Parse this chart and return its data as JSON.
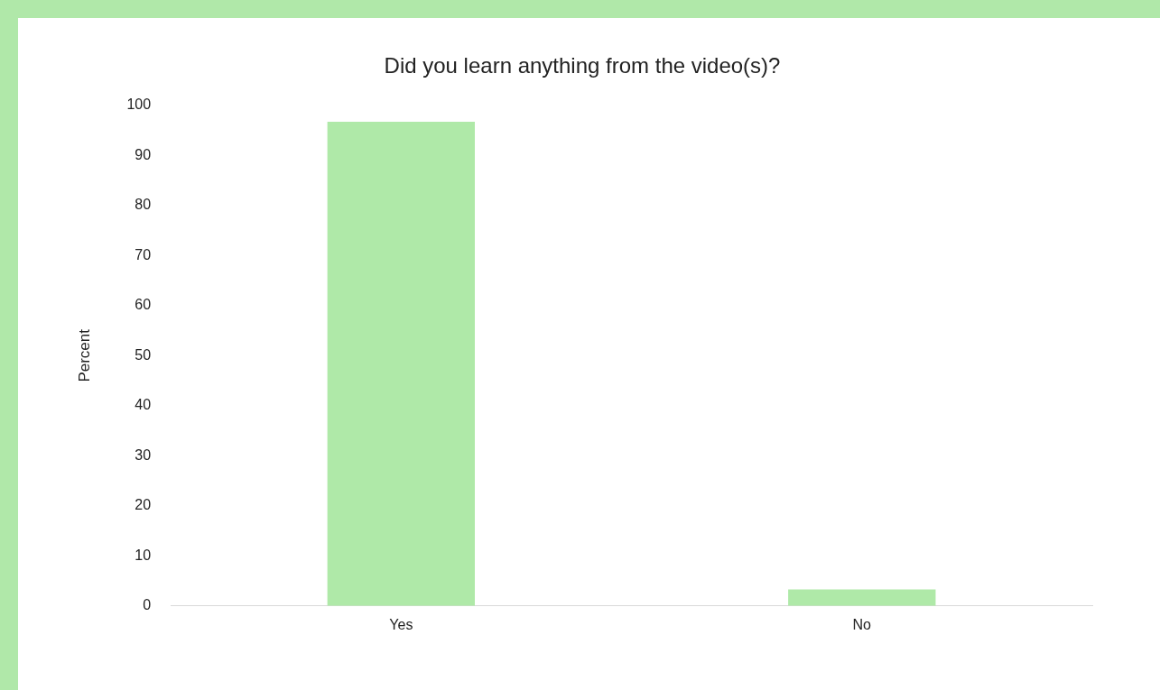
{
  "chart_data": {
    "type": "bar",
    "title": "Did you learn anything from the video(s)?",
    "ylabel": "Percent",
    "categories": [
      "Yes",
      "No"
    ],
    "values": [
      96.7,
      3.3
    ],
    "color": "#afe9a8",
    "ylim": [
      0,
      100
    ],
    "yticks": [
      0,
      10,
      20,
      30,
      40,
      50,
      60,
      70,
      80,
      90,
      100
    ],
    "grid": false,
    "legend": false
  }
}
